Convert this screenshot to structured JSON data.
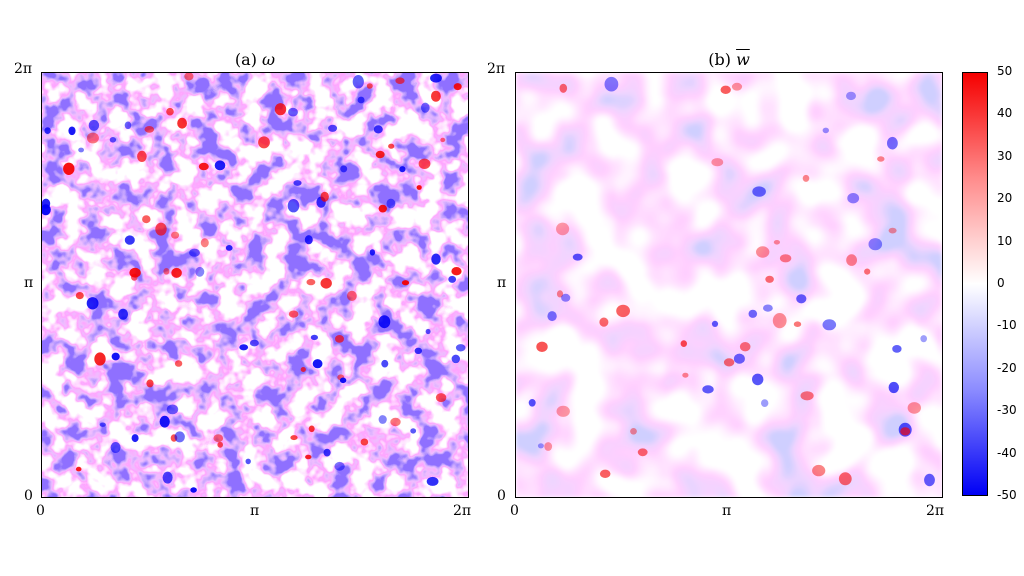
{
  "panels": [
    {
      "prefix": "(a)",
      "symbol": "ω",
      "overline": false
    },
    {
      "prefix": "(b)",
      "symbol": "w",
      "overline": true
    }
  ],
  "axis_ticks": {
    "zero": "0",
    "pi": "π",
    "two_pi": "2π"
  },
  "colorbar": {
    "labels": [
      "50",
      "40",
      "30",
      "20",
      "10",
      "0",
      "-10",
      "-20",
      "-30",
      "-40",
      "-50"
    ],
    "colors": {
      "max": "#f50000",
      "mid": "#ffffff",
      "min": "#0000f5"
    }
  }
}
